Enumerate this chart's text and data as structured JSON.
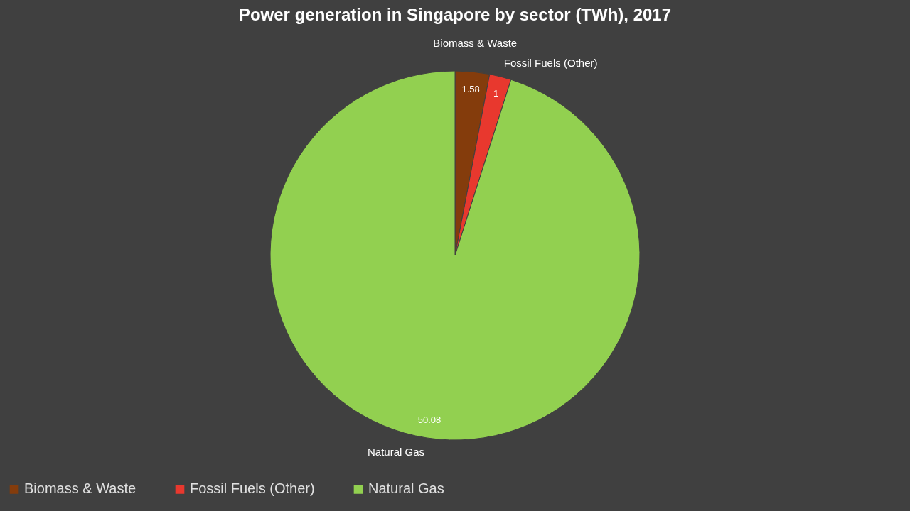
{
  "chart_data": {
    "type": "pie",
    "title": "Power generation in Singapore by sector (TWh), 2017",
    "categories": [
      "Biomass & Waste",
      "Fossil Fuels (Other)",
      "Natural Gas"
    ],
    "values": [
      1.58,
      1,
      50.08
    ],
    "colors": [
      "#843c0c",
      "#e8382e",
      "#92d050"
    ],
    "data_labels": true,
    "legend": "bottom"
  }
}
